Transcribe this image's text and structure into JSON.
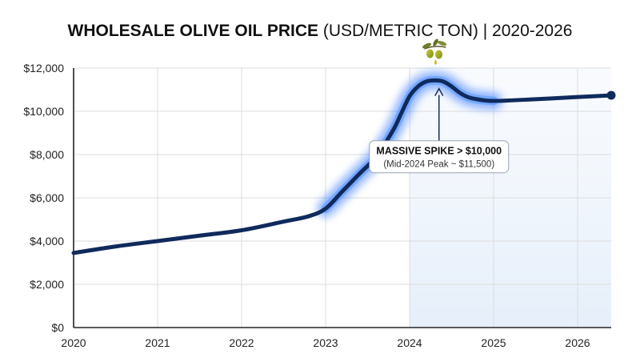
{
  "chart_data": {
    "type": "line",
    "title_bold": "WHOLESALE OLIVE OIL PRICE",
    "title_rest": " (USD/METRIC TON) | 2020-2026",
    "xlabel": "",
    "ylabel": "",
    "xlim": [
      2020,
      2026.4
    ],
    "ylim": [
      0,
      12000
    ],
    "x_ticks": [
      2020,
      2021,
      2022,
      2023,
      2024,
      2025,
      2026
    ],
    "x_tick_labels": [
      "2020",
      "2021",
      "2022",
      "2023",
      "2024",
      "2025",
      "2026"
    ],
    "y_ticks": [
      0,
      2000,
      4000,
      6000,
      8000,
      10000,
      12000
    ],
    "y_tick_labels": [
      "$0",
      "$2,000",
      "$4,000",
      "$6,000",
      "$8,000",
      "$10,000",
      "$12,000"
    ],
    "grid": true,
    "series": [
      {
        "color": "#0f2a5c",
        "glow_color": "#3a7bff",
        "highlight_range": [
          2022.9,
          2025.0
        ],
        "x": [
          2020.0,
          2020.5,
          2021.0,
          2021.5,
          2022.0,
          2022.5,
          2022.8,
          2023.0,
          2023.2,
          2023.4,
          2023.6,
          2023.8,
          2023.9,
          2024.0,
          2024.1,
          2024.2,
          2024.3,
          2024.4,
          2024.5,
          2024.6,
          2024.7,
          2024.8,
          2025.0,
          2025.5,
          2026.0,
          2026.4
        ],
        "y": [
          3450,
          3750,
          4000,
          4250,
          4500,
          4900,
          5150,
          5500,
          6300,
          7100,
          7900,
          9100,
          9900,
          10700,
          11150,
          11380,
          11430,
          11380,
          11150,
          10850,
          10650,
          10560,
          10480,
          10560,
          10660,
          10740
        ]
      }
    ],
    "end_marker": {
      "x": 2026.4,
      "y": 10740
    },
    "annotation": {
      "title": "MASSIVE SPIKE > $10,000",
      "subtitle": "(Mid-2024 Peak ~ $11,500)",
      "arrow_to": {
        "x": 2024.35,
        "y": 11050
      },
      "box_center": {
        "x": 2024.35,
        "y": 7900
      }
    },
    "highlight_band_start": 2024.0,
    "olive_icon": "olive-branch-icon"
  }
}
